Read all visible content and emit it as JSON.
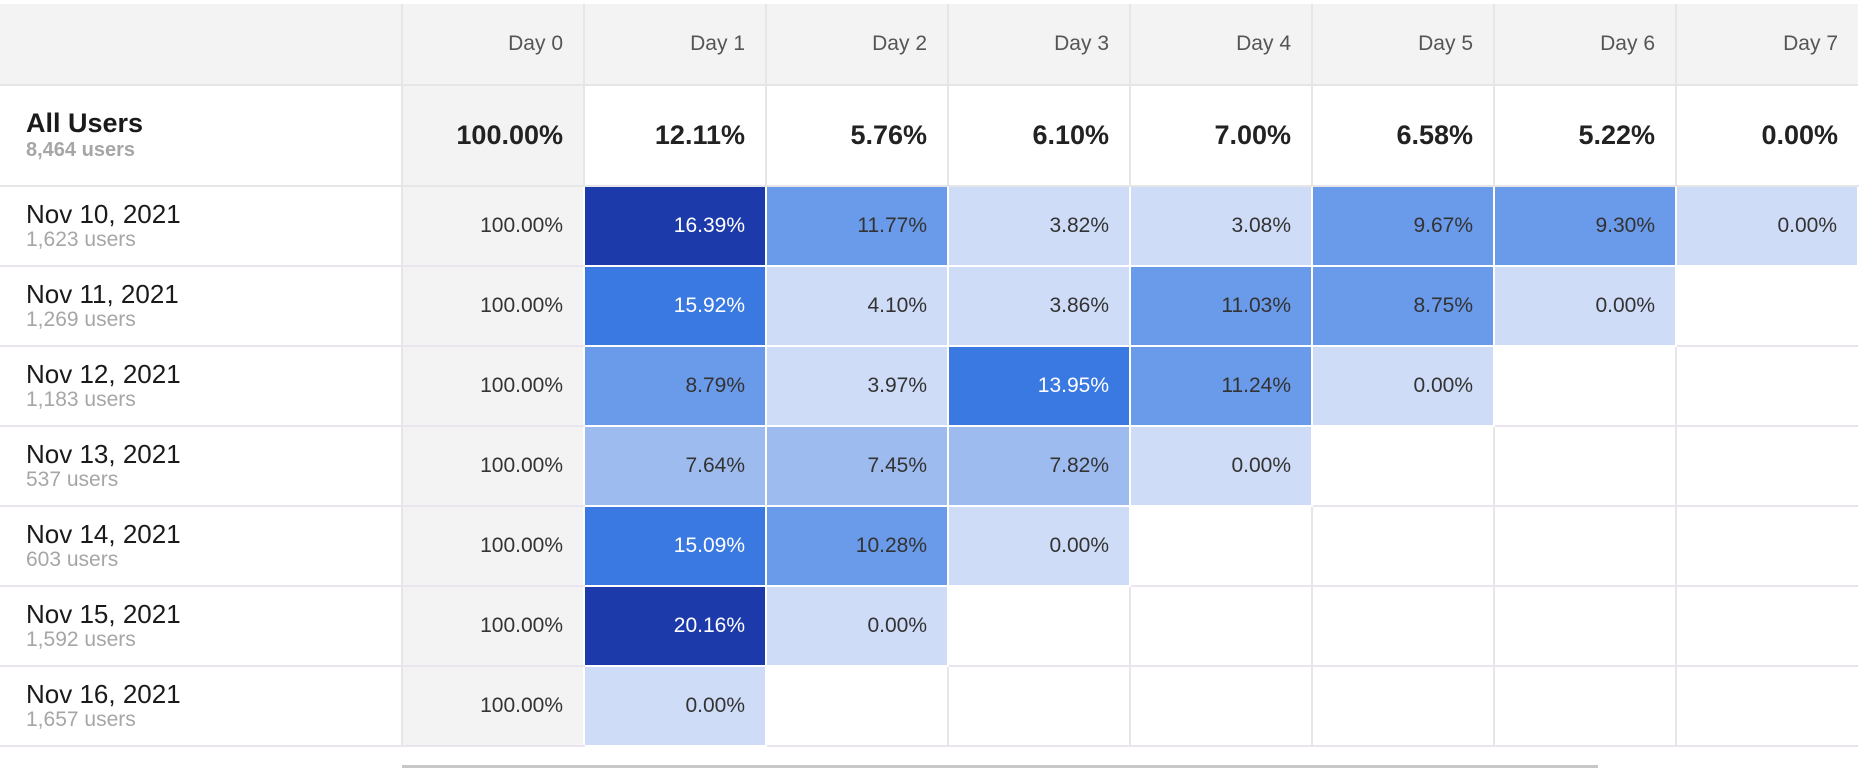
{
  "header": {
    "days": [
      "Day 0",
      "Day 1",
      "Day 2",
      "Day 3",
      "Day 4",
      "Day 5",
      "Day 6",
      "Day 7"
    ]
  },
  "total": {
    "name": "All Users",
    "users": "8,464 users",
    "values": [
      "100.00%",
      "12.11%",
      "5.76%",
      "6.10%",
      "7.00%",
      "6.58%",
      "5.22%",
      "0.00%"
    ]
  },
  "cohorts": [
    {
      "date": "Nov 10, 2021",
      "users": "1,623 users",
      "values": [
        "100.00%",
        "16.39%",
        "11.77%",
        "3.82%",
        "3.08%",
        "9.67%",
        "9.30%",
        "0.00%"
      ]
    },
    {
      "date": "Nov 11, 2021",
      "users": "1,269 users",
      "values": [
        "100.00%",
        "15.92%",
        "4.10%",
        "3.86%",
        "11.03%",
        "8.75%",
        "0.00%"
      ]
    },
    {
      "date": "Nov 12, 2021",
      "users": "1,183 users",
      "values": [
        "100.00%",
        "8.79%",
        "3.97%",
        "13.95%",
        "11.24%",
        "0.00%"
      ]
    },
    {
      "date": "Nov 13, 2021",
      "users": "537 users",
      "values": [
        "100.00%",
        "7.64%",
        "7.45%",
        "7.82%",
        "0.00%"
      ]
    },
    {
      "date": "Nov 14, 2021",
      "users": "603 users",
      "values": [
        "100.00%",
        "15.09%",
        "10.28%",
        "0.00%"
      ]
    },
    {
      "date": "Nov 15, 2021",
      "users": "1,592 users",
      "values": [
        "100.00%",
        "20.16%",
        "0.00%"
      ]
    },
    {
      "date": "Nov 16, 2021",
      "users": "1,657 users",
      "values": [
        "100.00%",
        "0.00%"
      ]
    }
  ],
  "colors": {
    "level1": "#cfdcf7",
    "level2": "#9ebbf0",
    "level3": "#6a9aea",
    "level4": "#3a78e2",
    "level5": "#1d3aab",
    "header_bg": "#f3f3f3"
  }
}
